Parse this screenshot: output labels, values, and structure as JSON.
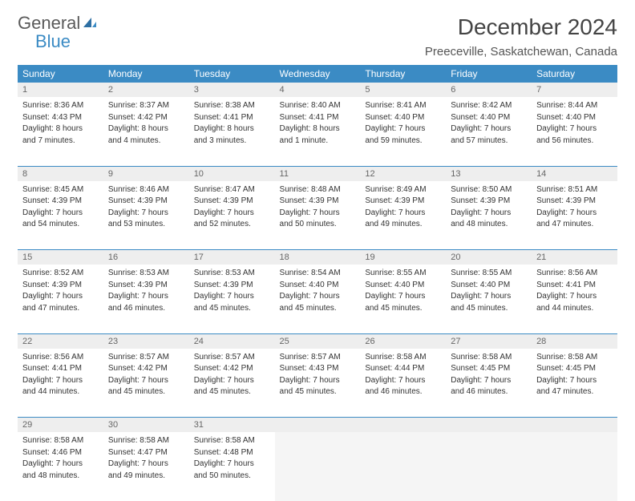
{
  "logo": {
    "general": "General",
    "blue": "Blue"
  },
  "title": "December 2024",
  "location": "Preeceville, Saskatchewan, Canada",
  "colors": {
    "header_bg": "#3b8bc4",
    "header_text": "#ffffff",
    "daynum_bg": "#eeeeee",
    "border": "#3b8bc4",
    "text": "#333333"
  },
  "weekdays": [
    "Sunday",
    "Monday",
    "Tuesday",
    "Wednesday",
    "Thursday",
    "Friday",
    "Saturday"
  ],
  "weeks": [
    [
      {
        "n": "1",
        "sr": "Sunrise: 8:36 AM",
        "ss": "Sunset: 4:43 PM",
        "d1": "Daylight: 8 hours",
        "d2": "and 7 minutes."
      },
      {
        "n": "2",
        "sr": "Sunrise: 8:37 AM",
        "ss": "Sunset: 4:42 PM",
        "d1": "Daylight: 8 hours",
        "d2": "and 4 minutes."
      },
      {
        "n": "3",
        "sr": "Sunrise: 8:38 AM",
        "ss": "Sunset: 4:41 PM",
        "d1": "Daylight: 8 hours",
        "d2": "and 3 minutes."
      },
      {
        "n": "4",
        "sr": "Sunrise: 8:40 AM",
        "ss": "Sunset: 4:41 PM",
        "d1": "Daylight: 8 hours",
        "d2": "and 1 minute."
      },
      {
        "n": "5",
        "sr": "Sunrise: 8:41 AM",
        "ss": "Sunset: 4:40 PM",
        "d1": "Daylight: 7 hours",
        "d2": "and 59 minutes."
      },
      {
        "n": "6",
        "sr": "Sunrise: 8:42 AM",
        "ss": "Sunset: 4:40 PM",
        "d1": "Daylight: 7 hours",
        "d2": "and 57 minutes."
      },
      {
        "n": "7",
        "sr": "Sunrise: 8:44 AM",
        "ss": "Sunset: 4:40 PM",
        "d1": "Daylight: 7 hours",
        "d2": "and 56 minutes."
      }
    ],
    [
      {
        "n": "8",
        "sr": "Sunrise: 8:45 AM",
        "ss": "Sunset: 4:39 PM",
        "d1": "Daylight: 7 hours",
        "d2": "and 54 minutes."
      },
      {
        "n": "9",
        "sr": "Sunrise: 8:46 AM",
        "ss": "Sunset: 4:39 PM",
        "d1": "Daylight: 7 hours",
        "d2": "and 53 minutes."
      },
      {
        "n": "10",
        "sr": "Sunrise: 8:47 AM",
        "ss": "Sunset: 4:39 PM",
        "d1": "Daylight: 7 hours",
        "d2": "and 52 minutes."
      },
      {
        "n": "11",
        "sr": "Sunrise: 8:48 AM",
        "ss": "Sunset: 4:39 PM",
        "d1": "Daylight: 7 hours",
        "d2": "and 50 minutes."
      },
      {
        "n": "12",
        "sr": "Sunrise: 8:49 AM",
        "ss": "Sunset: 4:39 PM",
        "d1": "Daylight: 7 hours",
        "d2": "and 49 minutes."
      },
      {
        "n": "13",
        "sr": "Sunrise: 8:50 AM",
        "ss": "Sunset: 4:39 PM",
        "d1": "Daylight: 7 hours",
        "d2": "and 48 minutes."
      },
      {
        "n": "14",
        "sr": "Sunrise: 8:51 AM",
        "ss": "Sunset: 4:39 PM",
        "d1": "Daylight: 7 hours",
        "d2": "and 47 minutes."
      }
    ],
    [
      {
        "n": "15",
        "sr": "Sunrise: 8:52 AM",
        "ss": "Sunset: 4:39 PM",
        "d1": "Daylight: 7 hours",
        "d2": "and 47 minutes."
      },
      {
        "n": "16",
        "sr": "Sunrise: 8:53 AM",
        "ss": "Sunset: 4:39 PM",
        "d1": "Daylight: 7 hours",
        "d2": "and 46 minutes."
      },
      {
        "n": "17",
        "sr": "Sunrise: 8:53 AM",
        "ss": "Sunset: 4:39 PM",
        "d1": "Daylight: 7 hours",
        "d2": "and 45 minutes."
      },
      {
        "n": "18",
        "sr": "Sunrise: 8:54 AM",
        "ss": "Sunset: 4:40 PM",
        "d1": "Daylight: 7 hours",
        "d2": "and 45 minutes."
      },
      {
        "n": "19",
        "sr": "Sunrise: 8:55 AM",
        "ss": "Sunset: 4:40 PM",
        "d1": "Daylight: 7 hours",
        "d2": "and 45 minutes."
      },
      {
        "n": "20",
        "sr": "Sunrise: 8:55 AM",
        "ss": "Sunset: 4:40 PM",
        "d1": "Daylight: 7 hours",
        "d2": "and 45 minutes."
      },
      {
        "n": "21",
        "sr": "Sunrise: 8:56 AM",
        "ss": "Sunset: 4:41 PM",
        "d1": "Daylight: 7 hours",
        "d2": "and 44 minutes."
      }
    ],
    [
      {
        "n": "22",
        "sr": "Sunrise: 8:56 AM",
        "ss": "Sunset: 4:41 PM",
        "d1": "Daylight: 7 hours",
        "d2": "and 44 minutes."
      },
      {
        "n": "23",
        "sr": "Sunrise: 8:57 AM",
        "ss": "Sunset: 4:42 PM",
        "d1": "Daylight: 7 hours",
        "d2": "and 45 minutes."
      },
      {
        "n": "24",
        "sr": "Sunrise: 8:57 AM",
        "ss": "Sunset: 4:42 PM",
        "d1": "Daylight: 7 hours",
        "d2": "and 45 minutes."
      },
      {
        "n": "25",
        "sr": "Sunrise: 8:57 AM",
        "ss": "Sunset: 4:43 PM",
        "d1": "Daylight: 7 hours",
        "d2": "and 45 minutes."
      },
      {
        "n": "26",
        "sr": "Sunrise: 8:58 AM",
        "ss": "Sunset: 4:44 PM",
        "d1": "Daylight: 7 hours",
        "d2": "and 46 minutes."
      },
      {
        "n": "27",
        "sr": "Sunrise: 8:58 AM",
        "ss": "Sunset: 4:45 PM",
        "d1": "Daylight: 7 hours",
        "d2": "and 46 minutes."
      },
      {
        "n": "28",
        "sr": "Sunrise: 8:58 AM",
        "ss": "Sunset: 4:45 PM",
        "d1": "Daylight: 7 hours",
        "d2": "and 47 minutes."
      }
    ],
    [
      {
        "n": "29",
        "sr": "Sunrise: 8:58 AM",
        "ss": "Sunset: 4:46 PM",
        "d1": "Daylight: 7 hours",
        "d2": "and 48 minutes."
      },
      {
        "n": "30",
        "sr": "Sunrise: 8:58 AM",
        "ss": "Sunset: 4:47 PM",
        "d1": "Daylight: 7 hours",
        "d2": "and 49 minutes."
      },
      {
        "n": "31",
        "sr": "Sunrise: 8:58 AM",
        "ss": "Sunset: 4:48 PM",
        "d1": "Daylight: 7 hours",
        "d2": "and 50 minutes."
      },
      null,
      null,
      null,
      null
    ]
  ]
}
